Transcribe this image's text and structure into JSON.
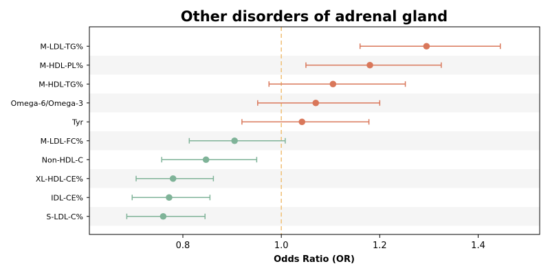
{
  "chart_data": {
    "type": "forest",
    "title": "Other disorders of adrenal gland",
    "xlabel": "Odds Ratio (OR)",
    "ylabel": "",
    "xlim": [
      0.61,
      1.525
    ],
    "xticks": [
      "0.8",
      "1.0",
      "1.2",
      "1.4"
    ],
    "reference_line": 1.0,
    "reference_color": "#f0c27b",
    "positive_color": "#d9775a",
    "negative_color": "#7fb398",
    "stripe_color": "#f5f5f5",
    "grid": false,
    "rows": [
      {
        "label": "M-LDL-TG%",
        "or": 1.295,
        "lower": 1.16,
        "upper": 1.445
      },
      {
        "label": "M-HDL-PL%",
        "or": 1.18,
        "lower": 1.05,
        "upper": 1.325
      },
      {
        "label": "M-HDL-TG%",
        "or": 1.105,
        "lower": 0.975,
        "upper": 1.252
      },
      {
        "label": "Omega-6/Omega-3",
        "or": 1.07,
        "lower": 0.952,
        "upper": 1.2
      },
      {
        "label": "Tyr",
        "or": 1.042,
        "lower": 0.92,
        "upper": 1.178
      },
      {
        "label": "M-LDL-FC%",
        "or": 0.905,
        "lower": 0.813,
        "upper": 1.008
      },
      {
        "label": "Non-HDL-C",
        "or": 0.847,
        "lower": 0.757,
        "upper": 0.95
      },
      {
        "label": "XL-HDL-CE%",
        "or": 0.78,
        "lower": 0.705,
        "upper": 0.862
      },
      {
        "label": "IDL-CE%",
        "or": 0.772,
        "lower": 0.697,
        "upper": 0.855
      },
      {
        "label": "S-LDL-C%",
        "or": 0.76,
        "lower": 0.686,
        "upper": 0.845
      }
    ]
  }
}
